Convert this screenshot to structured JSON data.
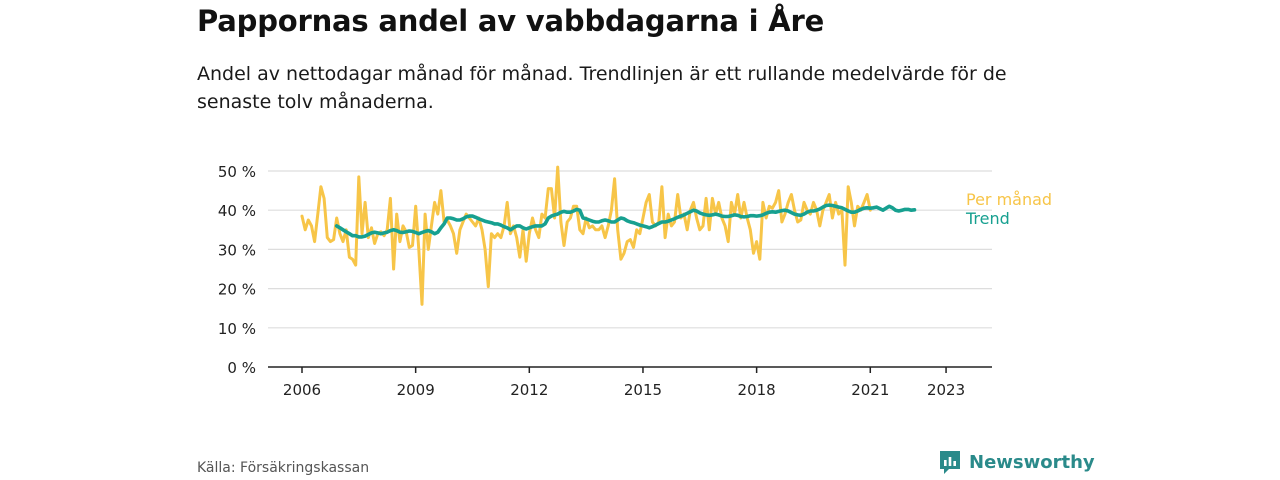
{
  "title": "Pappornas andel av vabbdagarna i Åre",
  "subtitle": "Andel av nettodagar månad för månad. Trendlinjen är ett rullande medelvärde för de senaste tolv månaderna.",
  "source": "Källa: Försäkringskassan",
  "brand": {
    "name": "Newsworthy",
    "icon": "newsworthy-logo-icon"
  },
  "colors": {
    "monthly": "#f7c548",
    "trend": "#17a090",
    "grid": "#dddddd",
    "axis": "#222222"
  },
  "chart_data": {
    "type": "line",
    "title": "Pappornas andel av vabbdagarna i Åre",
    "xlabel": "",
    "ylabel": "",
    "ylim": [
      0,
      50
    ],
    "xlim": [
      2006.0,
      2023.5
    ],
    "y_ticks": [
      0,
      10,
      20,
      30,
      40,
      50
    ],
    "y_tick_labels": [
      "0 %",
      "10 %",
      "20 %",
      "30 %",
      "40 %",
      "50 %"
    ],
    "x_ticks": [
      2006,
      2009,
      2012,
      2015,
      2018,
      2021,
      2023
    ],
    "x_tick_labels": [
      "2006",
      "2009",
      "2012",
      "2015",
      "2018",
      "2021",
      "2023"
    ],
    "grid": true,
    "legend": "right",
    "series": [
      {
        "name": "Per månad",
        "color": "#f7c548",
        "x_start": 2006.0,
        "x_step": 0.0833333,
        "values": [
          38.5,
          35.0,
          37.5,
          36.0,
          32.0,
          39.0,
          46.0,
          43.0,
          33.0,
          32.0,
          32.5,
          38.0,
          34.0,
          32.0,
          35.0,
          28.0,
          27.5,
          26.0,
          48.5,
          34.0,
          42.0,
          33.0,
          35.5,
          31.5,
          34.0,
          34.5,
          33.5,
          35.0,
          43.0,
          25.0,
          39.0,
          32.0,
          36.0,
          34.5,
          30.5,
          31.0,
          41.0,
          30.0,
          16.0,
          39.0,
          30.0,
          36.0,
          42.0,
          39.0,
          45.0,
          37.0,
          37.5,
          36.0,
          34.0,
          29.0,
          35.0,
          37.0,
          39.0,
          38.0,
          37.0,
          36.0,
          38.0,
          35.0,
          30.0,
          20.5,
          34.0,
          33.0,
          34.0,
          33.0,
          36.0,
          42.0,
          34.0,
          36.0,
          33.0,
          28.0,
          35.0,
          27.0,
          34.0,
          38.0,
          35.0,
          33.0,
          39.0,
          38.0,
          45.5,
          45.5,
          38.0,
          51.0,
          37.0,
          31.0,
          37.0,
          38.0,
          41.0,
          41.0,
          35.0,
          34.0,
          38.0,
          35.5,
          36.0,
          35.0,
          35.0,
          36.0,
          33.0,
          36.0,
          40.0,
          48.0,
          35.0,
          27.5,
          29.0,
          32.0,
          32.5,
          30.5,
          35.0,
          34.0,
          38.0,
          42.0,
          44.0,
          37.0,
          36.0,
          37.0,
          46.0,
          33.0,
          39.0,
          36.0,
          37.0,
          44.0,
          38.0,
          39.0,
          35.0,
          40.0,
          42.0,
          38.0,
          35.0,
          36.0,
          43.0,
          35.0,
          43.0,
          39.0,
          42.0,
          38.0,
          36.0,
          32.0,
          42.0,
          39.0,
          44.0,
          38.0,
          42.0,
          38.0,
          35.0,
          29.0,
          32.0,
          27.5,
          42.0,
          38.0,
          41.0,
          40.5,
          42.0,
          45.0,
          37.0,
          39.0,
          42.0,
          44.0,
          40.0,
          37.0,
          37.5,
          42.0,
          40.0,
          39.0,
          42.0,
          40.0,
          36.0,
          40.0,
          42.0,
          44.0,
          38.0,
          42.0,
          39.0,
          40.0,
          26.0,
          46.0,
          42.0,
          36.0,
          41.0,
          40.0,
          42.0,
          44.0,
          40.0
        ]
      },
      {
        "name": "Trend",
        "color": "#17a090",
        "x_start": 2006.9167,
        "x_step": 0.0833333,
        "values": [
          36.0,
          35.5,
          35.0,
          34.5,
          34.0,
          33.5,
          33.5,
          33.2,
          33.2,
          33.4,
          33.8,
          34.2,
          34.4,
          34.2,
          34.0,
          34.2,
          34.4,
          34.8,
          35.0,
          34.8,
          34.4,
          34.3,
          34.5,
          34.7,
          34.6,
          34.3,
          34.0,
          34.3,
          34.6,
          34.8,
          34.5,
          34.0,
          34.4,
          35.5,
          36.5,
          38.0,
          38.0,
          37.8,
          37.5,
          37.5,
          37.8,
          38.3,
          38.5,
          38.5,
          38.2,
          37.8,
          37.5,
          37.2,
          37.0,
          36.8,
          36.5,
          36.5,
          36.2,
          35.8,
          35.5,
          35.0,
          35.5,
          36.0,
          36.0,
          35.5,
          35.2,
          35.5,
          35.8,
          36.0,
          36.0,
          36.0,
          36.5,
          38.0,
          38.5,
          38.8,
          39.0,
          39.5,
          39.7,
          39.5,
          39.5,
          39.8,
          40.2,
          40.0,
          38.0,
          37.8,
          37.5,
          37.2,
          37.0,
          37.0,
          37.3,
          37.5,
          37.3,
          37.0,
          37.0,
          37.5,
          38.0,
          37.8,
          37.3,
          37.0,
          36.8,
          36.5,
          36.2,
          36.0,
          35.8,
          35.5,
          35.8,
          36.2,
          36.6,
          37.0,
          37.0,
          37.2,
          37.5,
          37.8,
          38.2,
          38.5,
          38.8,
          39.2,
          39.6,
          40.0,
          39.8,
          39.3,
          39.0,
          38.8,
          38.7,
          38.8,
          39.0,
          38.8,
          38.5,
          38.4,
          38.4,
          38.6,
          38.8,
          38.7,
          38.4,
          38.3,
          38.4,
          38.6,
          38.6,
          38.5,
          38.6,
          38.8,
          39.2,
          39.5,
          39.6,
          39.5,
          39.7,
          39.9,
          40.0,
          39.8,
          39.4,
          39.0,
          38.8,
          38.7,
          39.0,
          39.5,
          39.8,
          39.8,
          40.0,
          40.3,
          40.8,
          41.2,
          41.3,
          41.2,
          41.0,
          40.8,
          40.6,
          40.2,
          39.8,
          39.5,
          39.5,
          39.8,
          40.2,
          40.5,
          40.6,
          40.5,
          40.6,
          40.8,
          40.4,
          40.0,
          40.5,
          41.0,
          40.6,
          40.0,
          39.8,
          40.0,
          40.2,
          40.2,
          40.0,
          40.1
        ]
      }
    ]
  }
}
